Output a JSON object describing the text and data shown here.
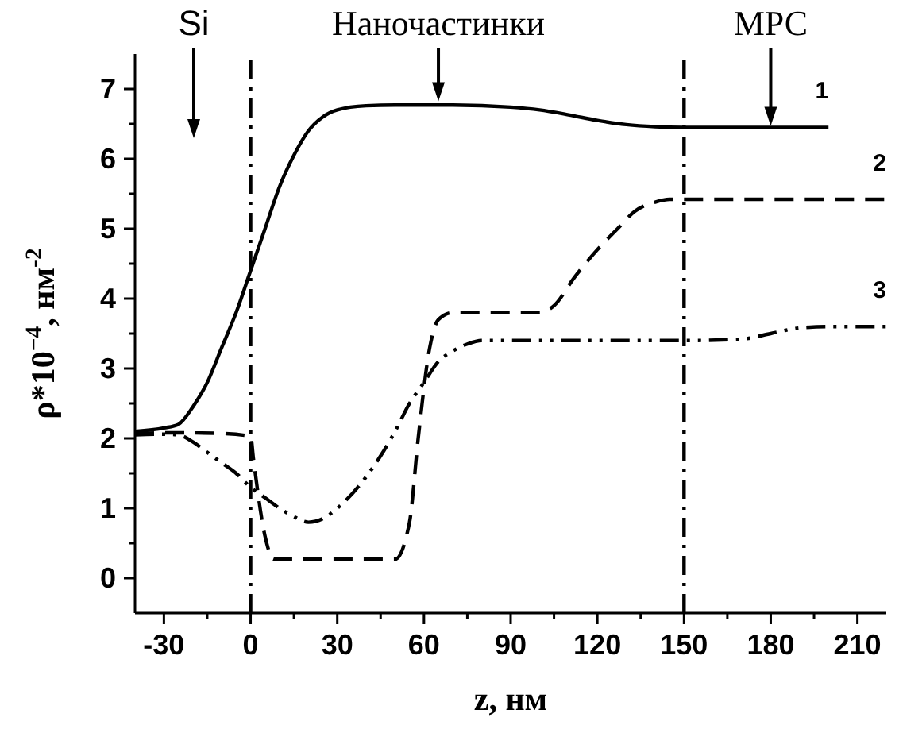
{
  "chart_data": {
    "type": "line",
    "xlabel": "z, нм",
    "ylabel": "ρ*10$^{−4}$, нм$^{-2}$",
    "xlim": [
      -40,
      220
    ],
    "ylim": [
      -0.5,
      7.5
    ],
    "xticks": [
      -30,
      {
        "value": -15,
        "label": null
      },
      0,
      {
        "value": 15,
        "label": null
      },
      30,
      {
        "value": 45,
        "label": null
      },
      60,
      {
        "value": 75,
        "label": null
      },
      90,
      {
        "value": 105,
        "label": null
      },
      120,
      {
        "value": 135,
        "label": null
      },
      150,
      {
        "value": 165,
        "label": null
      },
      180,
      {
        "value": 195,
        "label": null
      },
      210
    ],
    "yticks": [
      0,
      {
        "value": 0.5,
        "label": null
      },
      1,
      {
        "value": 1.5,
        "label": null
      },
      2,
      {
        "value": 2.5,
        "label": null
      },
      3,
      {
        "value": 3.5,
        "label": null
      },
      4,
      {
        "value": 4.5,
        "label": null
      },
      5,
      {
        "value": 5.5,
        "label": null
      },
      6,
      {
        "value": 6.5,
        "label": null
      },
      7
    ],
    "grid": false,
    "marker": "none",
    "series": [
      {
        "name": "1",
        "color": "#000000",
        "line_style": "solid",
        "x": [
          -40,
          -30,
          -25,
          -20,
          -15,
          -10,
          -5,
          0,
          5,
          10,
          15,
          20,
          25,
          30,
          40,
          50,
          70,
          90,
          100,
          110,
          120,
          130,
          140,
          150,
          200
        ],
        "values": [
          2.1,
          2.15,
          2.2,
          2.45,
          2.8,
          3.3,
          3.8,
          4.4,
          5.0,
          5.6,
          6.05,
          6.4,
          6.6,
          6.7,
          6.76,
          6.77,
          6.77,
          6.74,
          6.7,
          6.63,
          6.55,
          6.49,
          6.46,
          6.45,
          6.45
        ]
      },
      {
        "name": "2",
        "color": "#000000",
        "line_style": "dashed",
        "x": [
          -40,
          -25,
          -10,
          0,
          1,
          5,
          8,
          20,
          35,
          50,
          55,
          58,
          62,
          65,
          70,
          85,
          100,
          105,
          112,
          120,
          127,
          133,
          140,
          145,
          220
        ],
        "values": [
          2.07,
          2.08,
          2.07,
          2.03,
          1.7,
          0.6,
          0.27,
          0.27,
          0.27,
          0.27,
          0.8,
          2.0,
          3.3,
          3.7,
          3.8,
          3.8,
          3.8,
          3.9,
          4.3,
          4.7,
          5.0,
          5.25,
          5.38,
          5.42,
          5.42
        ]
      },
      {
        "name": "3",
        "color": "#000000",
        "line_style": "dashdotdot",
        "x": [
          -40,
          -30,
          -25,
          -20,
          -15,
          -10,
          -5,
          0,
          5,
          10,
          15,
          20,
          25,
          30,
          40,
          45,
          50,
          55,
          60,
          65,
          70,
          75,
          80,
          100,
          150,
          170,
          180,
          190,
          200,
          220
        ],
        "values": [
          2.05,
          2.06,
          2.05,
          1.95,
          1.8,
          1.65,
          1.5,
          1.3,
          1.15,
          1.0,
          0.88,
          0.8,
          0.85,
          1.0,
          1.45,
          1.75,
          2.1,
          2.5,
          2.8,
          3.1,
          3.25,
          3.35,
          3.4,
          3.4,
          3.4,
          3.42,
          3.5,
          3.58,
          3.6,
          3.6
        ]
      }
    ],
    "ref_lines": [
      {
        "axis": "x",
        "value": 0,
        "line_style": "dashdot"
      },
      {
        "axis": "x",
        "value": 150,
        "line_style": "dashdot"
      }
    ],
    "annotations": [
      "Si",
      {
        "text": "Наночастинки",
        "x": 65,
        "y": 6.8
      },
      {
        "text": "МРС",
        "x": 180,
        "y": 6.45
      }
    ]
  }
}
